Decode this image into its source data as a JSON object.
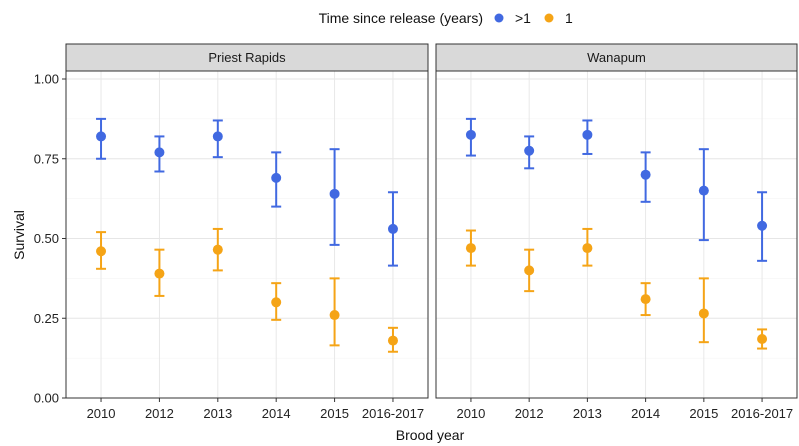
{
  "chart_data": {
    "type": "scatter",
    "subtype": "point-with-error-bars, faceted",
    "xlabel": "Brood year",
    "ylabel": "Survival",
    "categories": [
      "2010",
      "2012",
      "2013",
      "2014",
      "2015",
      "2016-2017"
    ],
    "ylim": [
      0,
      1
    ],
    "yticks": [
      "0.00",
      "0.25",
      "0.50",
      "0.75",
      "1.00"
    ],
    "grid": true,
    "legend": {
      "title": "Time since release (years)",
      "placement": "top",
      "entries": [
        {
          "label": ">1",
          "color": "#4169E1"
        },
        {
          "label": "1",
          "color": "#F5A416"
        }
      ]
    },
    "facets": [
      {
        "name": "Priest Rapids",
        "series": [
          {
            "name": ">1",
            "color": "#4169E1",
            "values": [
              0.82,
              0.77,
              0.82,
              0.69,
              0.64,
              0.53
            ],
            "lower": [
              0.75,
              0.71,
              0.755,
              0.6,
              0.48,
              0.415
            ],
            "upper": [
              0.875,
              0.82,
              0.87,
              0.77,
              0.78,
              0.645
            ]
          },
          {
            "name": "1",
            "color": "#F5A416",
            "values": [
              0.46,
              0.39,
              0.465,
              0.3,
              0.26,
              0.18
            ],
            "lower": [
              0.405,
              0.32,
              0.4,
              0.245,
              0.165,
              0.145
            ],
            "upper": [
              0.52,
              0.465,
              0.53,
              0.36,
              0.375,
              0.22
            ]
          }
        ]
      },
      {
        "name": "Wanapum",
        "series": [
          {
            "name": ">1",
            "color": "#4169E1",
            "values": [
              0.825,
              0.775,
              0.825,
              0.7,
              0.65,
              0.54
            ],
            "lower": [
              0.76,
              0.72,
              0.765,
              0.615,
              0.495,
              0.43
            ],
            "upper": [
              0.875,
              0.82,
              0.87,
              0.77,
              0.78,
              0.645
            ]
          },
          {
            "name": "1",
            "color": "#F5A416",
            "values": [
              0.47,
              0.4,
              0.47,
              0.31,
              0.265,
              0.185
            ],
            "lower": [
              0.415,
              0.335,
              0.415,
              0.26,
              0.175,
              0.155
            ],
            "upper": [
              0.525,
              0.465,
              0.53,
              0.36,
              0.375,
              0.215
            ]
          }
        ]
      }
    ]
  }
}
